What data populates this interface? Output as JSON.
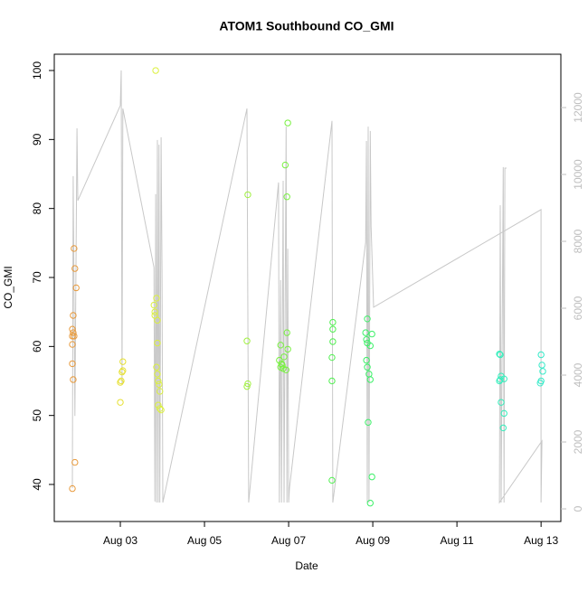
{
  "chart_data": {
    "type": "scatter",
    "title": "ATOM1 Southbound CO_GMI",
    "xlabel": "Date",
    "ylabel": "CO_GMI",
    "xlim": [
      1.43,
      13.47
    ],
    "ylim": [
      34.63,
      102.36
    ],
    "y2lim": [
      -378,
      13595
    ],
    "xticks": [
      {
        "value": 3,
        "label": "Aug 03"
      },
      {
        "value": 5,
        "label": "Aug 05"
      },
      {
        "value": 7,
        "label": "Aug 07"
      },
      {
        "value": 9,
        "label": "Aug 09"
      },
      {
        "value": 11,
        "label": "Aug 11"
      },
      {
        "value": 13,
        "label": "Aug 13"
      }
    ],
    "yticks": [
      40,
      50,
      60,
      70,
      80,
      90,
      100
    ],
    "y2ticks": [
      0,
      2000,
      4000,
      6000,
      8000,
      10000,
      12000
    ],
    "y2color": "#bebebe",
    "series": [
      {
        "type": "line",
        "axis": "y2",
        "color": "#c8c8c8",
        "x": [
          1.86,
          1.88,
          1.92,
          1.97,
          1.99,
          3.0,
          3.02,
          3.04,
          3.06,
          3.8,
          3.82,
          3.84,
          3.86,
          3.88,
          3.9,
          3.92,
          3.94,
          3.97,
          3.99,
          4.01,
          6.01,
          6.03,
          6.05,
          6.76,
          6.78,
          6.81,
          6.83,
          6.87,
          6.89,
          6.94,
          6.96,
          6.98,
          7.0,
          7.02,
          8.03,
          8.05,
          8.83,
          8.85,
          8.87,
          8.89,
          8.91,
          8.94,
          8.96,
          9.02,
          13.0,
          13.0,
          13.02,
          12.01,
          12.03,
          12.05,
          12.1,
          12.12,
          12.14,
          12.18
        ],
        "values": [
          620,
          9950,
          2780,
          11380,
          9220,
          12060,
          13110,
          3730,
          11970,
          7220,
          220,
          9410,
          190,
          11030,
          190,
          10890,
          190,
          11110,
          7110,
          190,
          11970,
          5760,
          190,
          9760,
          190,
          6840,
          190,
          9810,
          190,
          11430,
          190,
          7780,
          190,
          620,
          11600,
          190,
          7970,
          11000,
          190,
          11430,
          190,
          11300,
          8460,
          6030,
          8950,
          190,
          2030,
          190,
          9080,
          190,
          10220,
          190,
          10190,
          10190
        ]
      },
      {
        "type": "points",
        "color": "#e89a3c",
        "x": [
          1.88,
          1.86,
          1.88,
          1.86,
          1.9,
          1.86,
          1.86,
          1.88,
          1.9,
          1.92,
          1.95,
          1.92,
          1.86
        ],
        "values": [
          64.5,
          62.5,
          62,
          61.5,
          61.5,
          60.3,
          57.5,
          55.2,
          74.2,
          71.3,
          68.5,
          43.2,
          39.4
        ]
      },
      {
        "type": "points",
        "color": "#e6e032",
        "x": [
          3.0,
          3.02,
          3.04,
          3.06,
          3.06,
          3.0
        ],
        "values": [
          54.8,
          55,
          56.3,
          56.5,
          57.8,
          51.9
        ]
      },
      {
        "type": "points",
        "color": "#dcf040",
        "x": [
          3.84,
          3.8,
          3.82,
          3.82,
          3.86,
          3.88,
          3.88,
          3.86,
          3.88,
          3.9,
          3.92,
          3.94,
          3.9,
          3.94,
          3.97
        ],
        "values": [
          100,
          66,
          65,
          64.5,
          67,
          63.8,
          60.5,
          57,
          56,
          55,
          54.5,
          53.5,
          51.5,
          51,
          50.8
        ]
      },
      {
        "type": "points",
        "color": "#a0f040",
        "x": [
          6.03,
          6.01,
          6.01,
          6.03
        ],
        "values": [
          82,
          60.8,
          54.2,
          54.6
        ]
      },
      {
        "type": "points",
        "color": "#78f040",
        "x": [
          6.81,
          6.78,
          6.81,
          6.83,
          6.87,
          6.85,
          6.89,
          6.98,
          6.96,
          6.92,
          6.98,
          6.96,
          6.94
        ],
        "values": [
          60.2,
          58,
          57,
          57.5,
          56.8,
          57.3,
          58.5,
          59.6,
          62,
          86.3,
          92.4,
          81.7,
          56.6
        ]
      },
      {
        "type": "points",
        "color": "#50f050",
        "x": [
          8.03,
          8.03,
          8.05,
          8.05,
          8.05,
          8.03
        ],
        "values": [
          55,
          58.4,
          60.7,
          62.5,
          63.5,
          40.6
        ]
      },
      {
        "type": "points",
        "color": "#3cf068",
        "x": [
          8.83,
          8.85,
          8.87,
          8.87,
          8.85,
          8.87,
          8.91,
          8.94,
          8.98,
          8.94,
          8.89,
          8.98,
          8.94
        ],
        "values": [
          62,
          61,
          60.5,
          64,
          58,
          57,
          56,
          55.2,
          61.8,
          60.1,
          49,
          41.1,
          37.3
        ]
      },
      {
        "type": "points",
        "color": "#34eebc",
        "x": [
          12.01,
          12.03,
          12.01,
          12.03,
          12.05,
          12.12,
          12.05,
          12.12,
          12.1
        ],
        "values": [
          58.9,
          58.8,
          55,
          55.2,
          55.7,
          55.3,
          51.9,
          50.3,
          48.2
        ]
      },
      {
        "type": "points",
        "color": "#34eac8",
        "x": [
          13.0,
          13.02,
          13.04,
          13.0,
          12.98
        ],
        "values": [
          58.8,
          57.3,
          56.4,
          55,
          54.7
        ]
      }
    ]
  }
}
